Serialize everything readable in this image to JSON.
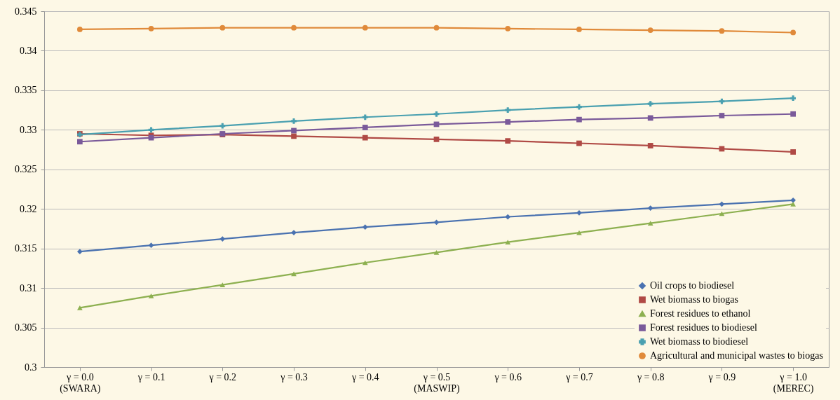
{
  "chart_data": {
    "type": "line",
    "categories": [
      "γ = 0.0\n(SWARA)",
      "γ = 0.1",
      "γ = 0.2",
      "γ = 0.3",
      "γ = 0.4",
      "γ = 0.5\n(MASWIP)",
      "γ = 0.6",
      "γ = 0.7",
      "γ = 0.8",
      "γ = 0.9",
      "γ = 1.0\n(MEREC)"
    ],
    "series": [
      {
        "name": "Oil crops to biodiesel",
        "color": "#4a72b0",
        "marker": "diamond",
        "values": [
          0.3146,
          0.3154,
          0.3162,
          0.317,
          0.3177,
          0.3183,
          0.319,
          0.3195,
          0.3201,
          0.3206,
          0.3211
        ]
      },
      {
        "name": "Wet biomass to biogas",
        "color": "#b04a45",
        "marker": "square",
        "values": [
          0.3295,
          0.3293,
          0.3294,
          0.3292,
          0.329,
          0.3288,
          0.3286,
          0.3283,
          0.328,
          0.3276,
          0.3272
        ]
      },
      {
        "name": "Forest residues to ethanol",
        "color": "#8db050",
        "marker": "triangle",
        "values": [
          0.3075,
          0.309,
          0.3104,
          0.3118,
          0.3132,
          0.3145,
          0.3158,
          0.317,
          0.3182,
          0.3194,
          0.3206
        ]
      },
      {
        "name": "Forest residues to biodiesel",
        "color": "#7a5a9a",
        "marker": "square",
        "values": [
          0.3285,
          0.329,
          0.3295,
          0.3299,
          0.3303,
          0.3307,
          0.331,
          0.3313,
          0.3315,
          0.3318,
          0.332
        ]
      },
      {
        "name": "Wet biomass to biodiesel",
        "color": "#4aa0b0",
        "marker": "cross",
        "values": [
          0.3294,
          0.33,
          0.3305,
          0.3311,
          0.3316,
          0.332,
          0.3325,
          0.3329,
          0.3333,
          0.3336,
          0.334
        ]
      },
      {
        "name": "Agricultural and municipal wastes to biogas",
        "color": "#e08a3a",
        "marker": "circle",
        "values": [
          0.3427,
          0.3428,
          0.3429,
          0.3429,
          0.3429,
          0.3429,
          0.3428,
          0.3427,
          0.3426,
          0.3425,
          0.3423
        ]
      }
    ],
    "ylim": [
      0.3,
      0.345
    ],
    "yticks": [
      0.3,
      0.305,
      0.31,
      0.315,
      0.32,
      0.325,
      0.33,
      0.335,
      0.34,
      0.345
    ],
    "grid": "y",
    "legend": "bottom right"
  }
}
